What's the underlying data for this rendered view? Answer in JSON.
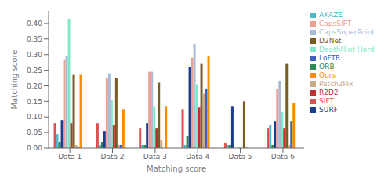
{
  "chart_data": {
    "type": "bar",
    "xlabel": "Matching score",
    "ylabel": "Matching score",
    "categories": [
      "Data 1",
      "Data 2",
      "Data 3",
      "Data 4",
      "Data 5",
      "Data 6"
    ],
    "series": [
      {
        "name": "SIFT",
        "color": "#e05050",
        "values": [
          0.08,
          0.08,
          0.065,
          0.125,
          0.015,
          0.065
        ]
      },
      {
        "name": "AKAZE",
        "color": "#4ab8c8",
        "values": [
          0.045,
          0.01,
          0.01,
          0.01,
          0.01,
          0.075
        ]
      },
      {
        "name": "ORB",
        "color": "#2e8b57",
        "values": [
          0.02,
          0.02,
          0.01,
          0.04,
          0.01,
          0.01
        ]
      },
      {
        "name": "SURF",
        "color": "#1a3d8f",
        "values": [
          0.09,
          0.055,
          0.08,
          0.26,
          0.135,
          0.085
        ]
      },
      {
        "name": "CapsSIFT",
        "color": "#f0a090",
        "values": [
          0.285,
          0.225,
          0.245,
          0.29,
          0.0,
          0.19
        ]
      },
      {
        "name": "CapsSuperPoint",
        "color": "#a8bcd8",
        "values": [
          0.295,
          0.24,
          0.245,
          0.335,
          0.0,
          0.215
        ]
      },
      {
        "name": "DepthHint Hard",
        "color": "#80e8c8",
        "values": [
          0.415,
          0.155,
          0.135,
          0.205,
          0.005,
          0.115
        ]
      },
      {
        "name": "R2D2",
        "color": "#c03030",
        "values": [
          0.08,
          0.075,
          0.065,
          0.13,
          0.0,
          0.065
        ]
      },
      {
        "name": "D2Net",
        "color": "#7a5c20",
        "values": [
          0.235,
          0.225,
          0.21,
          0.27,
          0.15,
          0.27
        ]
      },
      {
        "name": "Patch2Pix",
        "color": "#c8aa85",
        "values": [
          0.01,
          0.01,
          0.025,
          0.175,
          0.005,
          0.01
        ]
      },
      {
        "name": "LoFTR",
        "color": "#4060c0",
        "values": [
          0.005,
          0.01,
          0.0,
          0.19,
          0.0,
          0.085
        ]
      },
      {
        "name": "Ours",
        "color": "#ff8c00",
        "values": [
          0.235,
          0.125,
          0.135,
          0.295,
          0.0,
          0.145
        ]
      }
    ],
    "ylim": [
      0.0,
      0.44
    ],
    "yticks": [
      {
        "value": 0.0,
        "label": "0.00"
      },
      0.05,
      {
        "value": 0.1,
        "label": "0.10"
      },
      0.15,
      {
        "value": 0.2,
        "label": "0.20"
      },
      0.25,
      {
        "value": 0.3,
        "label": "0.30"
      },
      0.35,
      {
        "value": 0.4,
        "label": "0.40"
      }
    ],
    "grid": false,
    "legend": "right"
  }
}
